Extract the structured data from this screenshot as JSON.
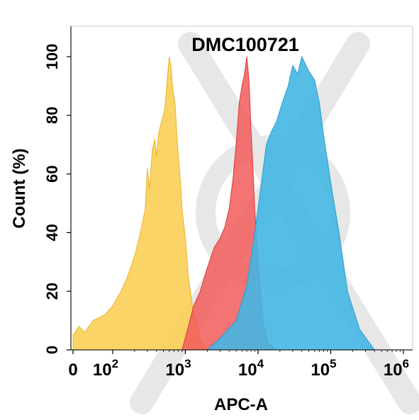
{
  "chart_data": {
    "type": "area",
    "title": "DMC100721",
    "xlabel": "APC-A",
    "ylabel": "Count  (%)",
    "x_scale": "biexponential",
    "xlim": [
      0,
      1000000
    ],
    "ylim": [
      0,
      105
    ],
    "x_ticks": [
      {
        "base": "0",
        "exp": ""
      },
      {
        "base": "10",
        "exp": "2"
      },
      {
        "base": "10",
        "exp": "3"
      },
      {
        "base": "10",
        "exp": "4"
      },
      {
        "base": "10",
        "exp": "5"
      },
      {
        "base": "10",
        "exp": "6"
      }
    ],
    "y_ticks": [
      "0",
      "20",
      "40",
      "60",
      "80",
      "100"
    ],
    "series": [
      {
        "color": "#F9CF57",
        "stroke": "#E8B52C",
        "opacity": 0.9,
        "x": [
          0,
          15,
          30,
          50,
          80,
          100,
          130,
          160,
          200,
          240,
          280,
          300,
          320,
          350,
          380,
          400,
          430,
          470,
          520,
          560,
          600,
          630,
          650,
          680,
          720,
          760,
          800,
          850,
          900,
          1000,
          1100,
          1300,
          1600,
          2000
        ],
        "y": [
          5,
          8,
          6,
          10,
          12,
          15,
          20,
          25,
          32,
          40,
          48,
          62,
          55,
          68,
          72,
          66,
          74,
          78,
          82,
          92,
          100,
          97,
          93,
          88,
          84,
          74,
          66,
          58,
          48,
          38,
          25,
          12,
          4,
          0
        ]
      },
      {
        "color": "#F25A5A",
        "stroke": "#D83A3A",
        "opacity": 0.85,
        "x": [
          900,
          1100,
          1300,
          1600,
          2000,
          2500,
          3000,
          3500,
          4000,
          4500,
          5000,
          5500,
          6000,
          6500,
          7000,
          7500,
          8000,
          8500,
          9000,
          10000,
          11000,
          12000,
          14000,
          18000
        ],
        "y": [
          0,
          8,
          15,
          20,
          28,
          35,
          38,
          42,
          48,
          58,
          70,
          84,
          90,
          94,
          100,
          92,
          75,
          62,
          48,
          30,
          18,
          8,
          2,
          0
        ]
      },
      {
        "color": "#44B6E3",
        "stroke": "#2A9DCB",
        "opacity": 0.9,
        "x": [
          2000,
          3000,
          5000,
          7000,
          9000,
          11000,
          13000,
          15000,
          18000,
          22000,
          26000,
          30000,
          35000,
          40000,
          50000,
          60000,
          70000,
          80000,
          100000,
          130000,
          170000,
          250000,
          400000
        ],
        "y": [
          0,
          4,
          10,
          22,
          40,
          56,
          70,
          74,
          78,
          85,
          90,
          97,
          94,
          100,
          95,
          92,
          84,
          73,
          57,
          40,
          20,
          7,
          0
        ]
      }
    ]
  }
}
